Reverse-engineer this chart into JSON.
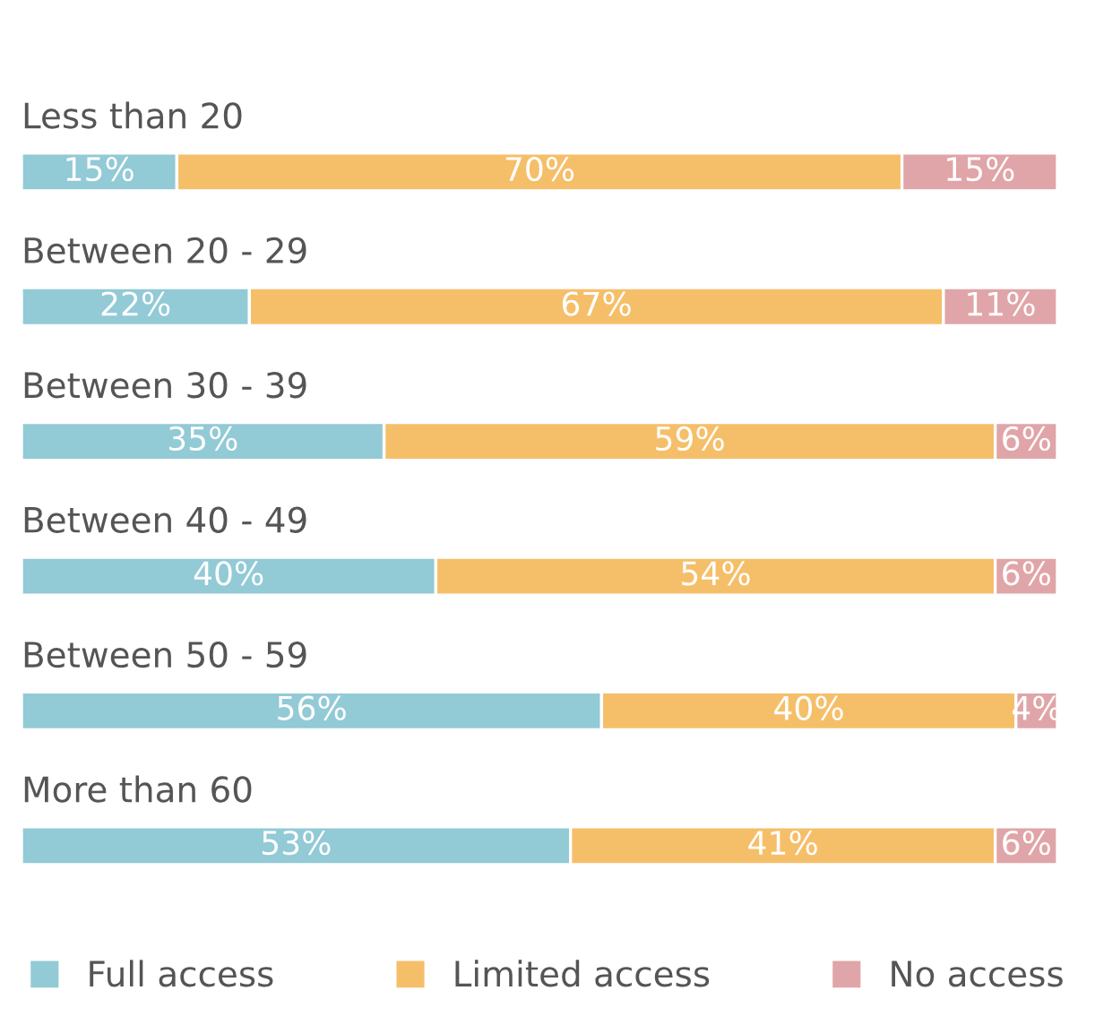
{
  "chart_data": {
    "type": "bar",
    "orientation": "horizontal",
    "stacked": true,
    "legend": "bottom",
    "categories": [
      "Less than 20",
      "Between 20 - 29",
      "Between 30 - 39",
      "Between 40 - 49",
      "Between 50 - 59",
      "More than 60"
    ],
    "series": [
      {
        "name": "Full access",
        "color": "#92cad6",
        "values": [
          15,
          22,
          35,
          40,
          56,
          53
        ],
        "value_labels": [
          "15%",
          "22%",
          "35%",
          "40%",
          "56%",
          "53%"
        ]
      },
      {
        "name": "Limited access",
        "color": "#f5bf6a",
        "values": [
          70,
          67,
          59,
          54,
          40,
          41
        ],
        "value_labels": [
          "70%",
          "67%",
          "59%",
          "54%",
          "40%",
          "41%"
        ]
      },
      {
        "name": "No access",
        "color": "#e0a5a8",
        "values": [
          15,
          11,
          6,
          6,
          4,
          6
        ],
        "value_labels": [
          "15%",
          "11%",
          "6%",
          "6%",
          "4%",
          "6%"
        ]
      }
    ]
  }
}
